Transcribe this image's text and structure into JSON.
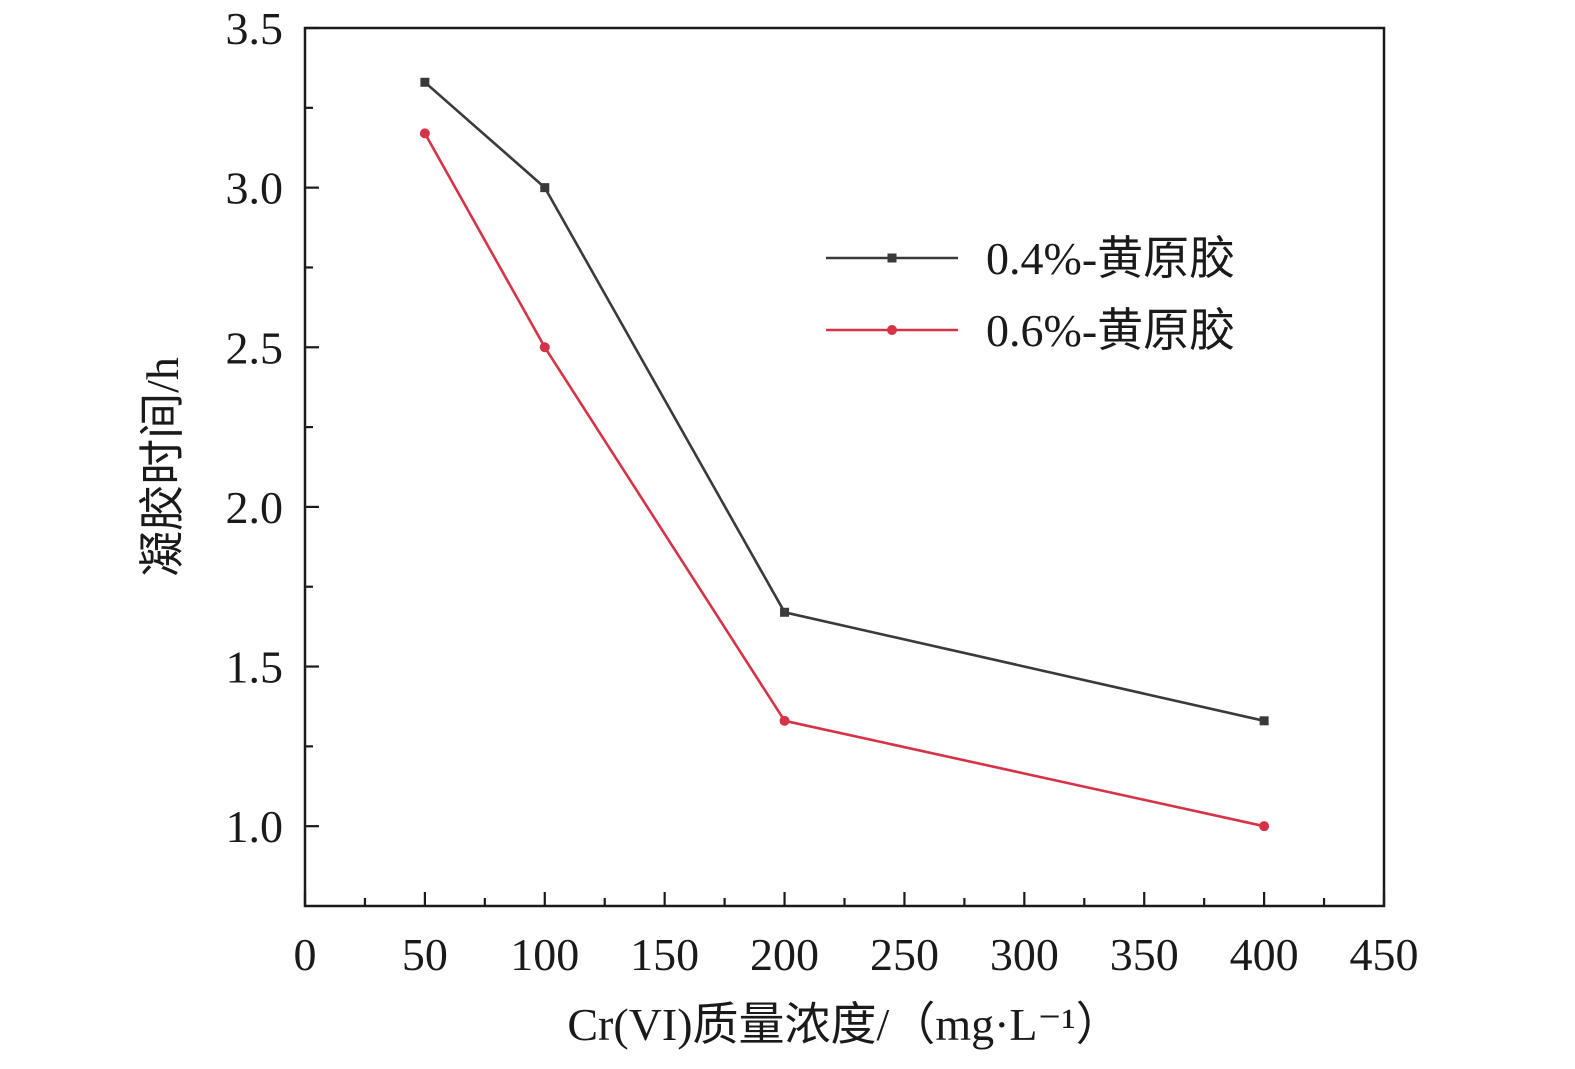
{
  "chart_data": {
    "type": "line",
    "title": "",
    "xlabel": "Cr(VI)质量浓度/（mg·L⁻¹）",
    "ylabel": "凝胶时间/h",
    "xlim": [
      0,
      450
    ],
    "ylim": [
      0.75,
      3.5
    ],
    "x_ticks": [
      "0",
      "50",
      "100",
      "150",
      "200",
      "250",
      "300",
      "350",
      "400",
      "450"
    ],
    "y_ticks": [
      "1.0",
      "1.5",
      "2.0",
      "2.5",
      "3.0",
      "3.5"
    ],
    "x": [
      50,
      100,
      200,
      400
    ],
    "series": [
      {
        "name": "0.4%-黄原胶",
        "values": [
          3.33,
          3.0,
          1.67,
          1.33
        ],
        "color": "#3a3a3a",
        "marker": "square"
      },
      {
        "name": "0.6%-黄原胶",
        "values": [
          3.17,
          2.5,
          1.33,
          1.0
        ],
        "color": "#d63347",
        "marker": "circle"
      }
    ],
    "legend_position": "upper-right",
    "grid": false
  }
}
